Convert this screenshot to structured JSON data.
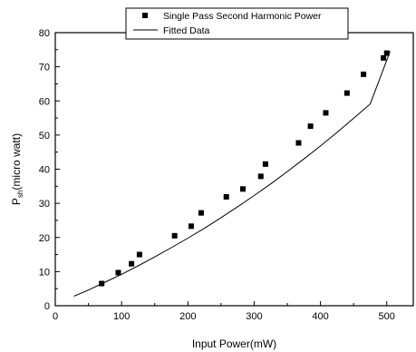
{
  "chart_data": {
    "type": "scatter",
    "title": "",
    "xlabel": "Input Power(mW)",
    "ylabel_main": "P",
    "ylabel_sub": "sh",
    "ylabel_rest": "(micro watt)",
    "xlim": [
      0,
      540
    ],
    "ylim": [
      0,
      80
    ],
    "xticks": [
      0,
      100,
      200,
      300,
      400,
      500
    ],
    "yticks": [
      0,
      10,
      20,
      30,
      40,
      50,
      60,
      70,
      80
    ],
    "legend_position": "top-center",
    "series": [
      {
        "name": "Single Pass Second Harmonic Power",
        "kind": "markers",
        "marker": "square",
        "color": "#000000",
        "x": [
          70,
          95,
          115,
          127,
          180,
          205,
          220,
          258,
          283,
          310,
          317,
          367,
          385,
          408,
          440,
          465,
          495,
          500
        ],
        "y": [
          6.5,
          9.7,
          12.3,
          15,
          20.5,
          23.3,
          27.2,
          31.9,
          34.2,
          37.9,
          41.5,
          47.7,
          52.6,
          56.5,
          62.3,
          67.8,
          72.6,
          74
        ]
      },
      {
        "name": "Fitted Data",
        "kind": "line",
        "color": "#000000",
        "x": [
          28,
          50,
          75,
          100,
          125,
          150,
          175,
          200,
          225,
          250,
          275,
          300,
          325,
          350,
          375,
          400,
          425,
          450,
          475,
          505
        ],
        "y": [
          2.8,
          4.6,
          6.9,
          9.2,
          11.7,
          14.3,
          17.0,
          19.8,
          22.7,
          25.8,
          29.0,
          32.3,
          35.7,
          39.3,
          43.0,
          46.8,
          50.8,
          54.9,
          59.1,
          74.5
        ]
      }
    ]
  }
}
